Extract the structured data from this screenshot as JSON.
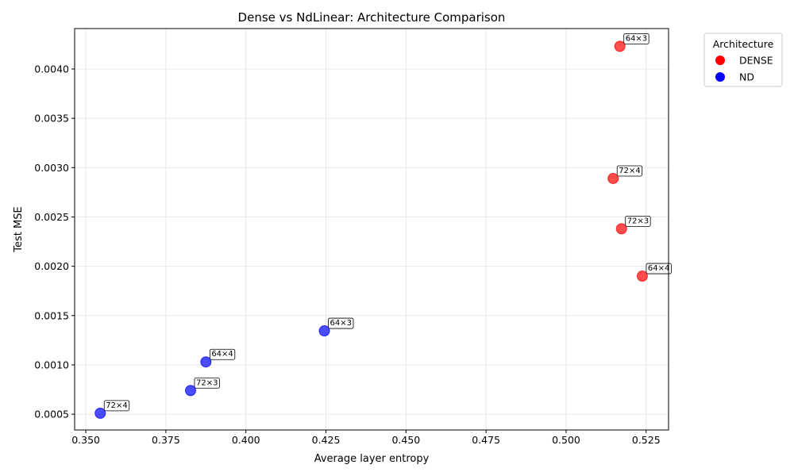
{
  "chart_data": {
    "type": "scatter",
    "title": "Dense vs NdLinear: Architecture Comparison",
    "xlabel": "Average layer entropy",
    "ylabel": "Test MSE",
    "xlim": [
      0.3465,
      0.532
    ],
    "ylim": [
      0.00034,
      0.00441
    ],
    "xticks": [
      0.35,
      0.375,
      0.4,
      0.425,
      0.45,
      0.475,
      0.5,
      0.525
    ],
    "xtick_labels": [
      "0.350",
      "0.375",
      "0.400",
      "0.425",
      "0.450",
      "0.475",
      "0.500",
      "0.525"
    ],
    "yticks": [
      0.0005,
      0.001,
      0.0015,
      0.002,
      0.0025,
      0.003,
      0.0035,
      0.004
    ],
    "ytick_labels": [
      "0.0005",
      "0.0010",
      "0.0015",
      "0.0020",
      "0.0025",
      "0.0030",
      "0.0035",
      "0.0040"
    ],
    "grid": true,
    "legend": {
      "title": "Architecture",
      "placement": "outside-top-right",
      "entries": [
        {
          "label": "DENSE",
          "color": "#ff0000"
        },
        {
          "label": "ND",
          "color": "#0000ff"
        }
      ]
    },
    "series": [
      {
        "name": "DENSE",
        "color": "#ff0000",
        "points": [
          {
            "x": 0.5168,
            "y": 0.00423,
            "label": "64×3"
          },
          {
            "x": 0.5147,
            "y": 0.00289,
            "label": "72×4"
          },
          {
            "x": 0.5173,
            "y": 0.00238,
            "label": "72×3"
          },
          {
            "x": 0.5238,
            "y": 0.0019,
            "label": "64×4"
          }
        ]
      },
      {
        "name": "ND",
        "color": "#0000ff",
        "points": [
          {
            "x": 0.4245,
            "y": 0.001345,
            "label": "64×3"
          },
          {
            "x": 0.3875,
            "y": 0.00103,
            "label": "64×4"
          },
          {
            "x": 0.3827,
            "y": 0.00074,
            "label": "72×3"
          },
          {
            "x": 0.3545,
            "y": 0.00051,
            "label": "72×4"
          }
        ]
      }
    ]
  }
}
